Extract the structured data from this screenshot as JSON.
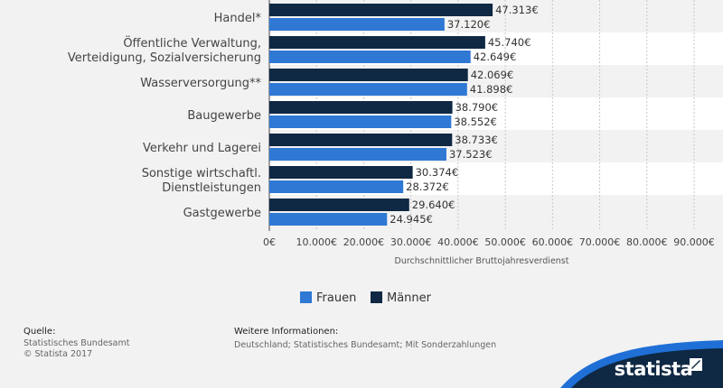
{
  "chart_data": {
    "type": "bar",
    "orientation": "horizontal",
    "categories": [
      [
        "Handel*"
      ],
      [
        "Öffentliche Verwaltung,",
        "Verteidigung, Sozialversicherung"
      ],
      [
        "Wasserversorgung**"
      ],
      [
        "Baugewerbe"
      ],
      [
        "Verkehr und Lagerei"
      ],
      [
        "Sonstige wirtschaftl.",
        "Dienstleistungen"
      ],
      [
        "Gastgewerbe"
      ]
    ],
    "series": [
      {
        "name": "Männer",
        "color": "#0f2843",
        "values": [
          47313,
          45740,
          42069,
          38790,
          38733,
          30374,
          29640
        ],
        "labels": [
          "47.313€",
          "45.740€",
          "42.069€",
          "38.790€",
          "38.733€",
          "30.374€",
          "29.640€"
        ]
      },
      {
        "name": "Frauen",
        "color": "#2f78d3",
        "values": [
          37120,
          42649,
          41898,
          38552,
          37523,
          28372,
          24945
        ],
        "labels": [
          "37.120€",
          "42.649€",
          "41.898€",
          "38.552€",
          "37.523€",
          "28.372€",
          "24.945€"
        ]
      }
    ],
    "xlim": [
      0,
      90000
    ],
    "xticks": [
      "0€",
      "10.000€",
      "20.000€",
      "30.000€",
      "40.000€",
      "50.000€",
      "60.000€",
      "70.000€",
      "80.000€",
      "90.000€"
    ],
    "xlabel": "Durchschnittlicher Bruttojahresverdienst",
    "legend": [
      {
        "name": "Frauen",
        "color": "#2f78d3"
      },
      {
        "name": "Männer",
        "color": "#0f2843"
      }
    ],
    "legend_position": "bottom",
    "grid": true
  },
  "footer": {
    "source_label": "Quelle:",
    "source_lines": [
      "Statistisches Bundesamt",
      "© Statista 2017"
    ],
    "info_label": "Weitere Informationen:",
    "info_text": "Deutschland; Statistisches Bundesamt; Mit Sonderzahlungen"
  },
  "brand": {
    "name": "statista",
    "accent": "#1f6fd6",
    "dark": "#0f2843"
  }
}
